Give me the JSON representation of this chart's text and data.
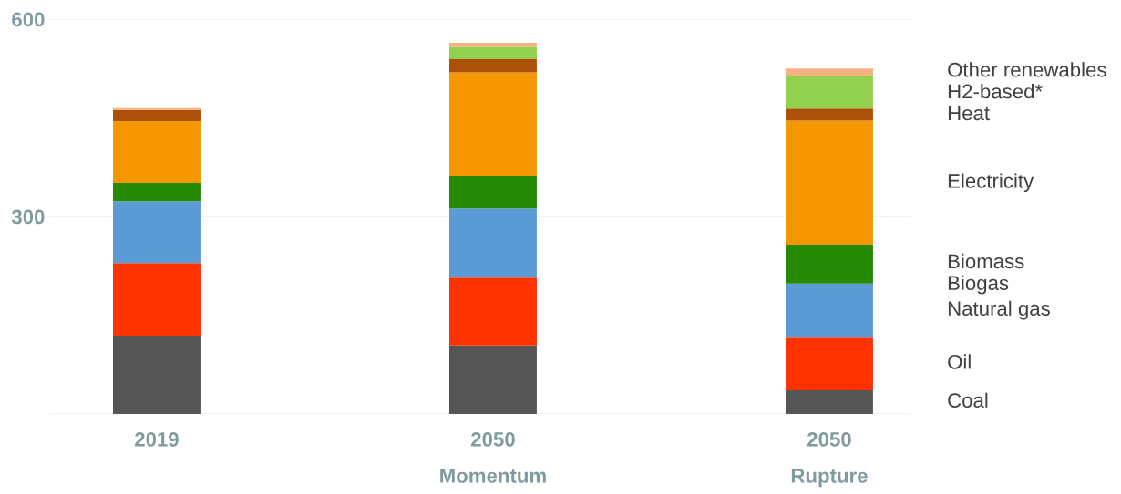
{
  "chart_data": {
    "type": "bar",
    "stacked": true,
    "categories": [
      "2019",
      "2050\nMomentum",
      "2050\nRupture"
    ],
    "series": [
      {
        "name": "Coal",
        "color": "#555555",
        "values": [
          119,
          104,
          36
        ]
      },
      {
        "name": "Oil",
        "color": "#ff3300",
        "values": [
          110,
          103,
          81
        ]
      },
      {
        "name": "Natural gas",
        "color": "#5b9bd5",
        "values": [
          94,
          105,
          81
        ]
      },
      {
        "name": "Biogas",
        "values": [
          null,
          null,
          null
        ]
      },
      {
        "name": "Biomass",
        "color": "#268a05",
        "values": [
          28,
          50,
          59
        ]
      },
      {
        "name": "Electricity",
        "color": "#f59700",
        "values": [
          94,
          157,
          189
        ]
      },
      {
        "name": "Heat",
        "color": "#ad5008",
        "values": [
          17,
          20,
          18
        ]
      },
      {
        "name": "H2-based*",
        "color": "#92d050",
        "values": [
          0,
          19,
          49
        ]
      },
      {
        "name": "Other renewables",
        "color": "#f4b183",
        "values": [
          3,
          6,
          12
        ]
      }
    ],
    "ylim": [
      0,
      600
    ],
    "yticks": [
      {
        "value": 0,
        "label": null
      },
      300,
      600
    ],
    "grid": "y",
    "legend": false
  }
}
